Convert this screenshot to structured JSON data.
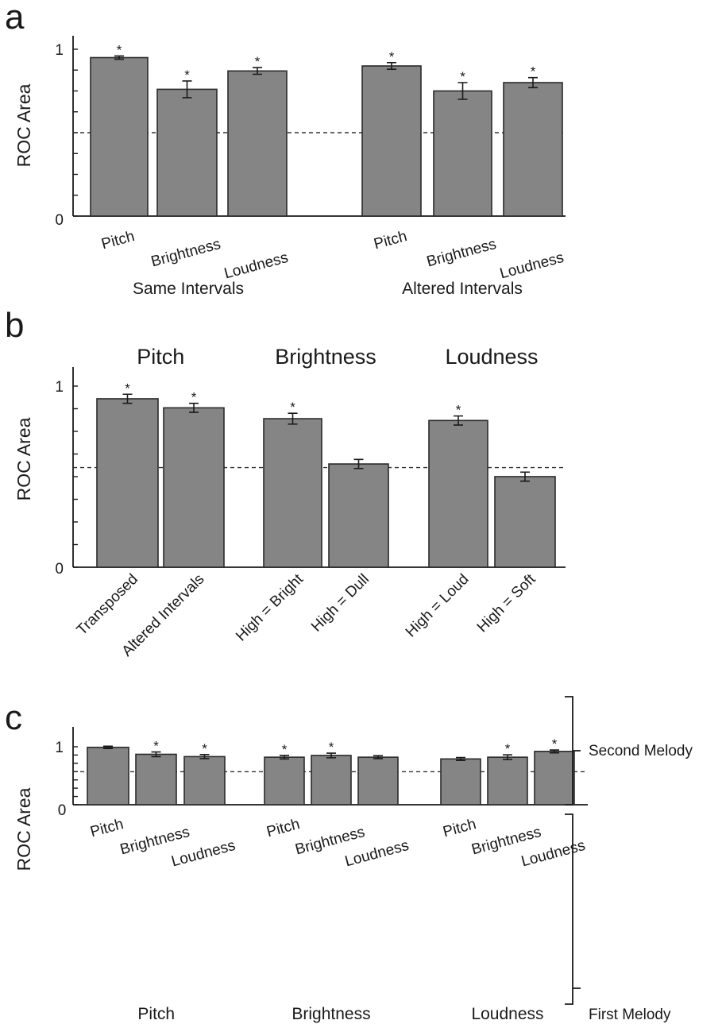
{
  "chart_data": [
    {
      "panel_label": "a",
      "type": "bar",
      "ylabel": "ROC Area",
      "ylim": [
        0,
        1
      ],
      "yticks": [
        0,
        1
      ],
      "reference_line": 0.5,
      "categories": [
        "Pitch",
        "Brightness",
        "Loudness",
        "Pitch",
        "Brightness",
        "Loudness"
      ],
      "groups": [
        {
          "label": "Same Intervals",
          "indices": [
            0,
            1,
            2
          ]
        },
        {
          "label": "Altered Intervals",
          "indices": [
            3,
            4,
            5
          ]
        }
      ],
      "values": [
        0.95,
        0.76,
        0.87,
        0.9,
        0.75,
        0.8
      ],
      "errors": [
        0.01,
        0.05,
        0.02,
        0.02,
        0.05,
        0.03
      ],
      "significant": [
        true,
        true,
        true,
        true,
        true,
        true
      ]
    },
    {
      "panel_label": "b",
      "type": "bar",
      "ylabel": "ROC Area",
      "ylim": [
        0,
        1
      ],
      "yticks": [
        0,
        1
      ],
      "reference_line": 0.55,
      "categories": [
        "Transposed",
        "Altered Intervals",
        "High = Bright",
        "High = Dull",
        "High = Loud",
        "High = Soft"
      ],
      "header_groups": [
        {
          "label": "Pitch",
          "indices": [
            0,
            1
          ]
        },
        {
          "label": "Brightness",
          "indices": [
            2,
            3
          ]
        },
        {
          "label": "Loudness",
          "indices": [
            4,
            5
          ]
        }
      ],
      "values": [
        0.93,
        0.88,
        0.82,
        0.57,
        0.81,
        0.5
      ],
      "errors": [
        0.025,
        0.025,
        0.03,
        0.025,
        0.025,
        0.025
      ],
      "significant": [
        true,
        true,
        true,
        false,
        true,
        false
      ]
    },
    {
      "panel_label": "c",
      "type": "bar",
      "ylabel": "ROC Area",
      "ylim": [
        0,
        1
      ],
      "yticks": [
        0,
        1
      ],
      "reference_line": 0.57,
      "categories": [
        "Pitch",
        "Brightness",
        "Loudness",
        "Pitch",
        "Brightness",
        "Loudness",
        "Pitch",
        "Brightness",
        "Loudness"
      ],
      "groups": [
        {
          "label": "Pitch",
          "indices": [
            0,
            1,
            2
          ]
        },
        {
          "label": "Brightness",
          "indices": [
            3,
            4,
            5
          ]
        },
        {
          "label": "Loudness",
          "indices": [
            6,
            7,
            8
          ]
        }
      ],
      "values": [
        0.99,
        0.87,
        0.83,
        0.82,
        0.85,
        0.82,
        0.79,
        0.82,
        0.92
      ],
      "errors": [
        0.02,
        0.04,
        0.035,
        0.03,
        0.04,
        0.025,
        0.025,
        0.04,
        0.025
      ],
      "significant": [
        false,
        true,
        true,
        true,
        true,
        false,
        false,
        true,
        true
      ],
      "legend": {
        "second": "Second Melody",
        "first": "First Melody"
      }
    }
  ]
}
